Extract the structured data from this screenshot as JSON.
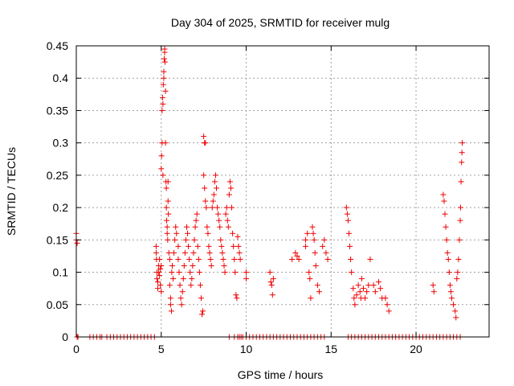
{
  "chart_data": {
    "type": "scatter",
    "title": "Day 304 of 2025, SRMTID for receiver mulg",
    "xlabel": "GPS time / hours",
    "ylabel": "SRMTID / TECUs",
    "xlim": [
      0,
      24.3
    ],
    "ylim": [
      0,
      0.45
    ],
    "x_ticks": [
      0,
      5,
      10,
      15,
      20
    ],
    "x_tick_labels": [
      "0",
      "5",
      "10",
      "15",
      "20"
    ],
    "y_ticks": [
      0,
      0.05,
      0.1,
      0.15,
      0.2,
      0.25,
      0.3,
      0.35,
      0.4,
      0.45
    ],
    "y_tick_labels": [
      "0",
      "0.05",
      "0.1",
      "0.15",
      "0.2",
      "0.25",
      "0.3",
      "0.35",
      "0.4",
      "0.45"
    ],
    "grid": true,
    "marker": "+",
    "color": "#ee0000",
    "series": [
      {
        "name": "SRMTID",
        "points": [
          [
            0.0,
            0.16
          ],
          [
            0.0,
            0.15
          ],
          [
            0.05,
            0.145
          ],
          [
            0.05,
            0.0
          ],
          [
            0.1,
            0.0
          ],
          [
            0.8,
            0.0
          ],
          [
            1.0,
            0.0
          ],
          [
            1.2,
            0.0
          ],
          [
            1.4,
            0.0
          ],
          [
            1.5,
            0.0
          ],
          [
            1.8,
            0.0
          ],
          [
            2.0,
            0.0
          ],
          [
            2.2,
            0.0
          ],
          [
            2.4,
            0.0
          ],
          [
            2.6,
            0.0
          ],
          [
            2.8,
            0.0
          ],
          [
            3.0,
            0.0
          ],
          [
            3.2,
            0.0
          ],
          [
            3.4,
            0.0
          ],
          [
            3.6,
            0.0
          ],
          [
            3.8,
            0.0
          ],
          [
            4.0,
            0.0
          ],
          [
            4.2,
            0.0
          ],
          [
            4.4,
            0.0
          ],
          [
            4.6,
            0.0
          ],
          [
            4.7,
            0.14
          ],
          [
            4.7,
            0.13
          ],
          [
            4.72,
            0.12
          ],
          [
            4.75,
            0.1
          ],
          [
            4.75,
            0.09
          ],
          [
            4.8,
            0.085
          ],
          [
            4.8,
            0.075
          ],
          [
            4.85,
            0.11
          ],
          [
            4.85,
            0.1
          ],
          [
            4.9,
            0.12
          ],
          [
            4.9,
            0.095
          ],
          [
            4.95,
            0.105
          ],
          [
            4.95,
            0.08
          ],
          [
            5.0,
            0.11
          ],
          [
            5.0,
            0.07
          ],
          [
            5.0,
            0.26
          ],
          [
            5.02,
            0.28
          ],
          [
            5.05,
            0.35
          ],
          [
            5.05,
            0.3
          ],
          [
            5.08,
            0.37
          ],
          [
            5.1,
            0.36
          ],
          [
            5.1,
            0.25
          ],
          [
            5.12,
            0.39
          ],
          [
            5.15,
            0.4
          ],
          [
            5.15,
            0.41
          ],
          [
            5.18,
            0.43
          ],
          [
            5.2,
            0.445
          ],
          [
            5.2,
            0.44
          ],
          [
            5.22,
            0.425
          ],
          [
            5.25,
            0.38
          ],
          [
            5.25,
            0.3
          ],
          [
            5.28,
            0.24
          ],
          [
            5.3,
            0.23
          ],
          [
            5.3,
            0.2
          ],
          [
            5.32,
            0.18
          ],
          [
            5.35,
            0.17
          ],
          [
            5.35,
            0.16
          ],
          [
            5.38,
            0.15
          ],
          [
            5.4,
            0.24
          ],
          [
            5.4,
            0.21
          ],
          [
            5.42,
            0.19
          ],
          [
            5.45,
            0.13
          ],
          [
            5.5,
            0.12
          ],
          [
            5.5,
            0.08
          ],
          [
            5.55,
            0.06
          ],
          [
            5.55,
            0.05
          ],
          [
            5.6,
            0.04
          ],
          [
            5.62,
            0.1
          ],
          [
            5.65,
            0.11
          ],
          [
            5.7,
            0.09
          ],
          [
            5.75,
            0.13
          ],
          [
            5.8,
            0.15
          ],
          [
            5.85,
            0.17
          ],
          [
            5.9,
            0.16
          ],
          [
            6.0,
            0.14
          ],
          [
            6.0,
            0.12
          ],
          [
            6.05,
            0.1
          ],
          [
            6.1,
            0.08
          ],
          [
            6.15,
            0.06
          ],
          [
            6.2,
            0.05
          ],
          [
            6.25,
            0.07
          ],
          [
            6.3,
            0.09
          ],
          [
            6.35,
            0.11
          ],
          [
            6.4,
            0.13
          ],
          [
            6.45,
            0.15
          ],
          [
            6.5,
            0.17
          ],
          [
            6.55,
            0.16
          ],
          [
            6.6,
            0.14
          ],
          [
            6.65,
            0.12
          ],
          [
            6.7,
            0.1
          ],
          [
            6.75,
            0.08
          ],
          [
            6.8,
            0.09
          ],
          [
            6.85,
            0.11
          ],
          [
            6.9,
            0.13
          ],
          [
            6.95,
            0.15
          ],
          [
            7.0,
            0.17
          ],
          [
            7.05,
            0.18
          ],
          [
            7.1,
            0.19
          ],
          [
            7.15,
            0.14
          ],
          [
            7.2,
            0.12
          ],
          [
            7.25,
            0.1
          ],
          [
            7.3,
            0.08
          ],
          [
            7.35,
            0.06
          ],
          [
            7.4,
            0.035
          ],
          [
            7.45,
            0.04
          ],
          [
            7.5,
            0.31
          ],
          [
            7.55,
            0.3
          ],
          [
            7.6,
            0.3
          ],
          [
            7.5,
            0.25
          ],
          [
            7.55,
            0.23
          ],
          [
            7.6,
            0.21
          ],
          [
            7.65,
            0.2
          ],
          [
            7.7,
            0.17
          ],
          [
            7.75,
            0.16
          ],
          [
            7.8,
            0.14
          ],
          [
            7.85,
            0.13
          ],
          [
            7.9,
            0.12
          ],
          [
            7.95,
            0.11
          ],
          [
            8.0,
            0.2
          ],
          [
            8.05,
            0.21
          ],
          [
            8.1,
            0.22
          ],
          [
            8.15,
            0.24
          ],
          [
            8.2,
            0.25
          ],
          [
            8.25,
            0.23
          ],
          [
            8.3,
            0.2
          ],
          [
            8.35,
            0.19
          ],
          [
            8.4,
            0.18
          ],
          [
            8.45,
            0.17
          ],
          [
            8.5,
            0.15
          ],
          [
            8.55,
            0.14
          ],
          [
            8.6,
            0.13
          ],
          [
            8.65,
            0.12
          ],
          [
            8.7,
            0.11
          ],
          [
            8.75,
            0.1
          ],
          [
            8.8,
            0.19
          ],
          [
            8.85,
            0.2
          ],
          [
            8.9,
            0.18
          ],
          [
            8.95,
            0.17
          ],
          [
            9.0,
            0.22
          ],
          [
            9.05,
            0.24
          ],
          [
            9.1,
            0.23
          ],
          [
            9.15,
            0.2
          ],
          [
            9.2,
            0.16
          ],
          [
            9.25,
            0.14
          ],
          [
            9.3,
            0.12
          ],
          [
            9.35,
            0.1
          ],
          [
            9.4,
            0.065
          ],
          [
            9.45,
            0.06
          ],
          [
            9.5,
            0.155
          ],
          [
            9.55,
            0.14
          ],
          [
            9.6,
            0.13
          ],
          [
            9.65,
            0.12
          ],
          [
            9.7,
            0.0
          ],
          [
            9.0,
            0.0
          ],
          [
            9.3,
            0.0
          ],
          [
            9.5,
            0.0
          ],
          [
            9.6,
            0.0
          ],
          [
            9.8,
            0.0
          ],
          [
            10.0,
            0.1
          ],
          [
            10.0,
            0.09
          ],
          [
            10.0,
            0.0
          ],
          [
            10.2,
            0.0
          ],
          [
            10.4,
            0.0
          ],
          [
            10.6,
            0.0
          ],
          [
            10.8,
            0.0
          ],
          [
            11.0,
            0.0
          ],
          [
            11.2,
            0.0
          ],
          [
            11.4,
            0.0
          ],
          [
            11.6,
            0.0
          ],
          [
            11.8,
            0.0
          ],
          [
            12.0,
            0.0
          ],
          [
            12.2,
            0.0
          ],
          [
            12.4,
            0.0
          ],
          [
            12.6,
            0.0
          ],
          [
            12.8,
            0.0
          ],
          [
            13.0,
            0.0
          ],
          [
            13.2,
            0.0
          ],
          [
            13.4,
            0.0
          ],
          [
            13.6,
            0.0
          ],
          [
            13.8,
            0.0
          ],
          [
            14.0,
            0.0
          ],
          [
            14.2,
            0.0
          ],
          [
            14.4,
            0.0
          ],
          [
            14.6,
            0.0
          ],
          [
            11.4,
            0.1
          ],
          [
            11.45,
            0.085
          ],
          [
            11.5,
            0.08
          ],
          [
            11.55,
            0.065
          ],
          [
            11.6,
            0.09
          ],
          [
            12.7,
            0.12
          ],
          [
            12.9,
            0.13
          ],
          [
            13.0,
            0.125
          ],
          [
            13.1,
            0.12
          ],
          [
            13.5,
            0.15
          ],
          [
            13.5,
            0.14
          ],
          [
            13.6,
            0.16
          ],
          [
            13.7,
            0.1
          ],
          [
            13.75,
            0.09
          ],
          [
            13.8,
            0.06
          ],
          [
            13.9,
            0.17
          ],
          [
            13.95,
            0.16
          ],
          [
            14.0,
            0.15
          ],
          [
            14.05,
            0.13
          ],
          [
            14.1,
            0.11
          ],
          [
            14.2,
            0.08
          ],
          [
            14.3,
            0.07
          ],
          [
            14.5,
            0.14
          ],
          [
            14.6,
            0.15
          ],
          [
            14.7,
            0.13
          ],
          [
            14.8,
            0.12
          ],
          [
            15.9,
            0.2
          ],
          [
            15.95,
            0.19
          ],
          [
            16.0,
            0.18
          ],
          [
            16.05,
            0.16
          ],
          [
            16.1,
            0.14
          ],
          [
            16.15,
            0.12
          ],
          [
            16.2,
            0.1
          ],
          [
            16.3,
            0.075
          ],
          [
            16.35,
            0.06
          ],
          [
            16.4,
            0.05
          ],
          [
            16.5,
            0.065
          ],
          [
            16.6,
            0.08
          ],
          [
            16.7,
            0.07
          ],
          [
            16.75,
            0.06
          ],
          [
            16.8,
            0.09
          ],
          [
            16.9,
            0.075
          ],
          [
            17.0,
            0.06
          ],
          [
            17.1,
            0.07
          ],
          [
            17.2,
            0.08
          ],
          [
            16.0,
            0.0
          ],
          [
            16.2,
            0.0
          ],
          [
            16.4,
            0.0
          ],
          [
            16.6,
            0.0
          ],
          [
            16.8,
            0.0
          ],
          [
            17.0,
            0.0
          ],
          [
            17.2,
            0.0
          ],
          [
            17.4,
            0.0
          ],
          [
            17.6,
            0.0
          ],
          [
            17.8,
            0.0
          ],
          [
            18.0,
            0.0
          ],
          [
            18.2,
            0.0
          ],
          [
            18.4,
            0.0
          ],
          [
            18.6,
            0.0
          ],
          [
            18.8,
            0.0
          ],
          [
            19.0,
            0.0
          ],
          [
            19.2,
            0.0
          ],
          [
            19.4,
            0.0
          ],
          [
            19.6,
            0.0
          ],
          [
            19.8,
            0.0
          ],
          [
            20.0,
            0.0
          ],
          [
            20.2,
            0.0
          ],
          [
            20.4,
            0.0
          ],
          [
            20.6,
            0.0
          ],
          [
            20.8,
            0.0
          ],
          [
            21.0,
            0.0
          ],
          [
            21.2,
            0.0
          ],
          [
            21.4,
            0.0
          ],
          [
            21.6,
            0.0
          ],
          [
            21.8,
            0.0
          ],
          [
            22.0,
            0.0
          ],
          [
            22.2,
            0.0
          ],
          [
            22.4,
            0.0
          ],
          [
            22.6,
            0.0
          ],
          [
            17.3,
            0.12
          ],
          [
            17.5,
            0.08
          ],
          [
            17.6,
            0.07
          ],
          [
            17.8,
            0.085
          ],
          [
            17.9,
            0.075
          ],
          [
            18.0,
            0.06
          ],
          [
            18.2,
            0.06
          ],
          [
            18.3,
            0.05
          ],
          [
            18.4,
            0.04
          ],
          [
            21.0,
            0.08
          ],
          [
            21.05,
            0.07
          ],
          [
            21.6,
            0.22
          ],
          [
            21.65,
            0.21
          ],
          [
            21.7,
            0.19
          ],
          [
            21.75,
            0.17
          ],
          [
            21.8,
            0.15
          ],
          [
            21.85,
            0.13
          ],
          [
            21.9,
            0.12
          ],
          [
            21.95,
            0.1
          ],
          [
            22.0,
            0.08
          ],
          [
            22.05,
            0.07
          ],
          [
            22.1,
            0.06
          ],
          [
            22.2,
            0.05
          ],
          [
            22.3,
            0.04
          ],
          [
            22.35,
            0.03
          ],
          [
            22.4,
            0.09
          ],
          [
            22.45,
            0.1
          ],
          [
            22.5,
            0.12
          ],
          [
            22.55,
            0.15
          ],
          [
            22.6,
            0.18
          ],
          [
            22.62,
            0.2
          ],
          [
            22.65,
            0.24
          ],
          [
            22.68,
            0.27
          ],
          [
            22.7,
            0.285
          ],
          [
            22.72,
            0.3
          ]
        ]
      }
    ]
  }
}
